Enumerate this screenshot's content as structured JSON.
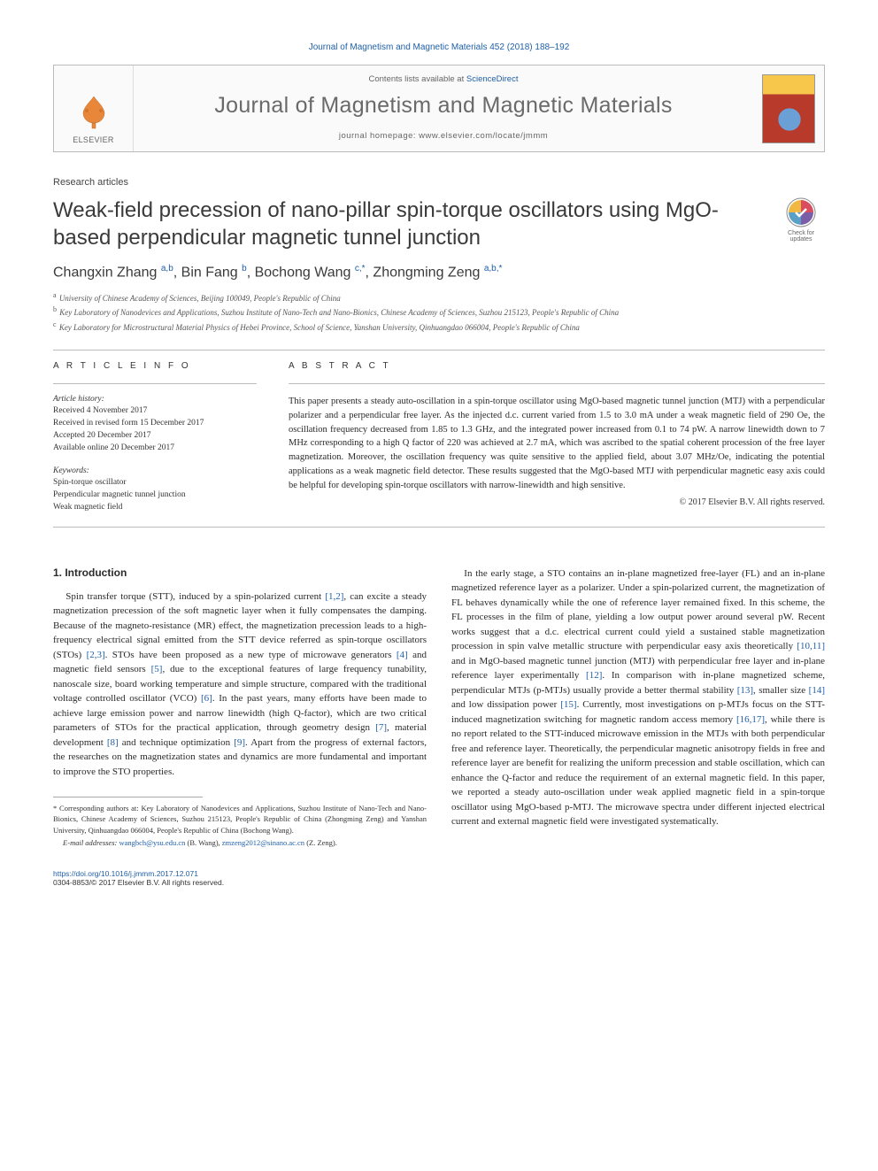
{
  "journal_header": "Journal of Magnetism and Magnetic Materials 452 (2018) 188–192",
  "box": {
    "contents_prefix": "Contents lists available at ",
    "contents_link": "ScienceDirect",
    "journal_name": "Journal of Magnetism and Magnetic Materials",
    "homepage_prefix": "journal homepage: ",
    "homepage_url": "www.elsevier.com/locate/jmmm",
    "elsevier": "ELSEVIER"
  },
  "article_type": "Research articles",
  "title": "Weak-field precession of nano-pillar spin-torque oscillators using MgO-based perpendicular magnetic tunnel junction",
  "check_updates_label": "Check for updates",
  "authors_html": "Changxin Zhang <sup class='aff'>a,b</sup>, Bin Fang <sup class='aff'>b</sup>, Bochong Wang <sup class='aff'>c,*</sup>, Zhongming Zeng <sup class='aff'>a,b,*</sup>",
  "affiliations": [
    {
      "sup": "a",
      "text": "University of Chinese Academy of Sciences, Beijing 100049, People's Republic of China"
    },
    {
      "sup": "b",
      "text": "Key Laboratory of Nanodevices and Applications, Suzhou Institute of Nano-Tech and Nano-Bionics, Chinese Academy of Sciences, Suzhou 215123, People's Republic of China"
    },
    {
      "sup": "c",
      "text": "Key Laboratory for Microstructural Material Physics of Hebei Province, School of Science, Yanshan University, Qinhuangdao 066004, People's Republic of China"
    }
  ],
  "article_info_label": "A R T I C L E   I N F O",
  "abstract_label": "A B S T R A C T",
  "history_label": "Article history:",
  "history": [
    "Received 4 November 2017",
    "Received in revised form 15 December 2017",
    "Accepted 20 December 2017",
    "Available online 20 December 2017"
  ],
  "keywords_label": "Keywords:",
  "keywords": [
    "Spin-torque oscillator",
    "Perpendicular magnetic tunnel junction",
    "Weak magnetic field"
  ],
  "abstract": "This paper presents a steady auto-oscillation in a spin-torque oscillator using MgO-based magnetic tunnel junction (MTJ) with a perpendicular polarizer and a perpendicular free layer. As the injected d.c. current varied from 1.5 to 3.0 mA under a weak magnetic field of 290 Oe, the oscillation frequency decreased from 1.85 to 1.3 GHz, and the integrated power increased from 0.1 to 74 pW. A narrow linewidth down to 7 MHz corresponding to a high Q factor of 220 was achieved at 2.7 mA, which was ascribed to the spatial coherent procession of the free layer magnetization. Moreover, the oscillation frequency was quite sensitive to the applied field, about 3.07 MHz/Oe, indicating the potential applications as a weak magnetic field detector. These results suggested that the MgO-based MTJ with perpendicular magnetic easy axis could be helpful for developing spin-torque oscillators with narrow-linewidth and high sensitive.",
  "copyright": "© 2017 Elsevier B.V. All rights reserved.",
  "intro_heading": "1. Introduction",
  "intro_col1_html": "Spin transfer torque (STT), induced by a spin-polarized current <span class='ref'>[1,2]</span>, can excite a steady magnetization precession of the soft magnetic layer when it fully compensates the damping. Because of the magneto-resistance (MR) effect, the magnetization precession leads to a high-frequency electrical signal emitted from the STT device referred as spin-torque oscillators (STOs) <span class='ref'>[2,3]</span>. STOs have been proposed as a new type of microwave generators <span class='ref'>[4]</span> and magnetic field sensors <span class='ref'>[5]</span>, due to the exceptional features of large frequency tunability, nanoscale size, board working temperature and simple structure, compared with the traditional voltage controlled oscillator (VCO) <span class='ref'>[6]</span>. In the past years, many efforts have been made to achieve large emission power and narrow linewidth (high Q-factor), which are two critical parameters of STOs for the practical application, through geometry design <span class='ref'>[7]</span>, material development <span class='ref'>[8]</span> and technique optimization <span class='ref'>[9]</span>. Apart from the progress of external factors, the researches on the magnetization states and dynamics are more fundamental and important to improve the STO properties.",
  "intro_col2_html": "In the early stage, a STO contains an in-plane magnetized free-layer (FL) and an in-plane magnetized reference layer as a polarizer. Under a spin-polarized current, the magnetization of FL behaves dynamically while the one of reference layer remained fixed. In this scheme, the FL processes in the film of plane, yielding a low output power around several pW. Recent works suggest that a d.c. electrical current could yield a sustained stable magnetization procession in spin valve metallic structure with perpendicular easy axis theoretically <span class='ref'>[10,11]</span> and in MgO-based magnetic tunnel junction (MTJ) with perpendicular free layer and in-plane reference layer experimentally <span class='ref'>[12]</span>. In comparison with in-plane magnetized scheme, perpendicular MTJs (p-MTJs) usually provide a better thermal stability <span class='ref'>[13]</span>, smaller size <span class='ref'>[14]</span> and low dissipation power <span class='ref'>[15]</span>. Currently, most investigations on p-MTJs focus on the STT-induced magnetization switching for magnetic random access memory <span class='ref'>[16,17]</span>, while there is no report related to the STT-induced microwave emission in the MTJs with both perpendicular free and reference layer. Theoretically, the perpendicular magnetic anisotropy fields in free and reference layer are benefit for realizing the uniform precession and stable oscillation, which can enhance the Q-factor and reduce the requirement of an external magnetic field. In this paper, we reported a steady auto-oscillation under weak applied magnetic field in a spin-torque oscillator using MgO-based p-MTJ. The microwave spectra under different injected electrical current and external magnetic field were investigated systematically.",
  "footnote": {
    "corr": "* Corresponding authors at: Key Laboratory of Nanodevices and Applications, Suzhou Institute of Nano-Tech and Nano-Bionics, Chinese Academy of Sciences, Suzhou 215123, People's Republic of China (Zhongming Zeng) and Yanshan University, Qinhuangdao 066004, People's Republic of China (Bochong Wang).",
    "email_label": "E-mail addresses: ",
    "emails_html": "<span class='email'>wangbch@ysu.edu.cn</span> (B. Wang), <span class='email'>zmzeng2012@sinano.ac.cn</span> (Z. Zeng)."
  },
  "footer": {
    "doi": "https://doi.org/10.1016/j.jmmm.2017.12.071",
    "issn_line": "0304-8853/© 2017 Elsevier B.V. All rights reserved."
  },
  "colors": {
    "link": "#2060a8",
    "text": "#2a2a2a",
    "border": "#bbb",
    "journal_name": "#6a6a6a"
  }
}
